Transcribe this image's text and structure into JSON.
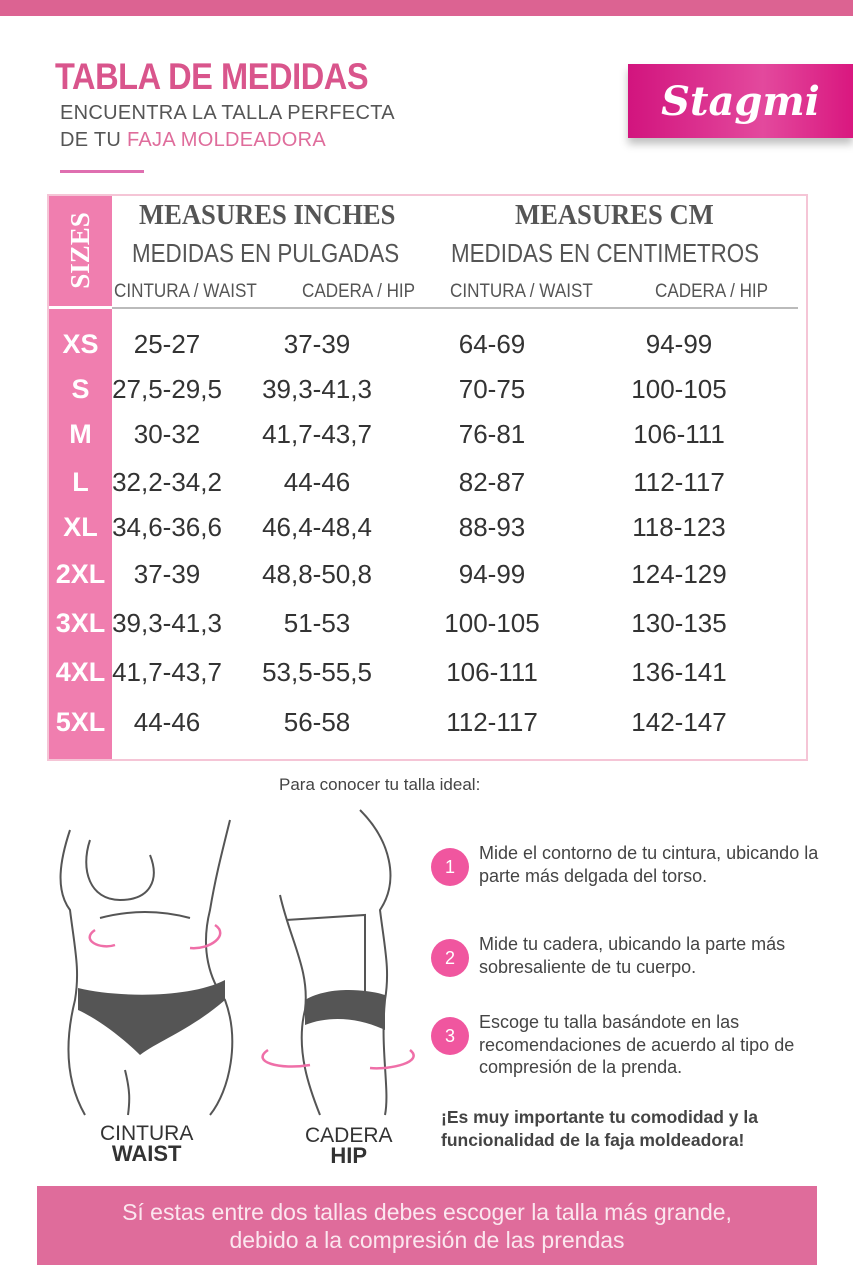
{
  "header": {
    "title": "TABLA DE MEDIDAS",
    "subtitle_line1": "ENCUENTRA LA TALLA PERFECTA",
    "subtitle_line2_prefix": "DE TU ",
    "subtitle_line2_highlight": "FAJA MOLDEADORA",
    "logo": "Stagmi"
  },
  "table": {
    "sizes_label": "SIZES",
    "inches_title": "MEASURES INCHES",
    "inches_subtitle": "MEDIDAS EN PULGADAS",
    "cm_title": "MEASURES CM",
    "cm_subtitle": "MEDIDAS EN CENTIMETROS",
    "columns": [
      "CINTURA / WAIST",
      "CADERA / HIP",
      "CINTURA / WAIST",
      "CADERA / HIP"
    ],
    "rows": [
      {
        "size": "XS",
        "waist_in": "25-27",
        "hip_in": "37-39",
        "waist_cm": "64-69",
        "hip_cm": "94-99"
      },
      {
        "size": "S",
        "waist_in": "27,5-29,5",
        "hip_in": "39,3-41,3",
        "waist_cm": "70-75",
        "hip_cm": "100-105"
      },
      {
        "size": "M",
        "waist_in": "30-32",
        "hip_in": "41,7-43,7",
        "waist_cm": "76-81",
        "hip_cm": "106-111"
      },
      {
        "size": "L",
        "waist_in": "32,2-34,2",
        "hip_in": "44-46",
        "waist_cm": "82-87",
        "hip_cm": "112-117"
      },
      {
        "size": "XL",
        "waist_in": "34,6-36,6",
        "hip_in": "46,4-48,4",
        "waist_cm": "88-93",
        "hip_cm": "118-123"
      },
      {
        "size": "2XL",
        "waist_in": "37-39",
        "hip_in": "48,8-50,8",
        "waist_cm": "94-99",
        "hip_cm": "124-129"
      },
      {
        "size": "3XL",
        "waist_in": "39,3-41,3",
        "hip_in": "51-53",
        "waist_cm": "100-105",
        "hip_cm": "130-135"
      },
      {
        "size": "4XL",
        "waist_in": "41,7-43,7",
        "hip_in": "53,5-55,5",
        "waist_cm": "106-111",
        "hip_cm": "136-141"
      },
      {
        "size": "5XL",
        "waist_in": "44-46",
        "hip_in": "56-58",
        "waist_cm": "112-117",
        "hip_cm": "142-147"
      }
    ]
  },
  "guide": {
    "intro": "Para conocer tu talla ideal:",
    "steps": [
      {
        "num": "1",
        "text": "Mide el contorno de tu cintura, ubicando la parte más delgada del torso."
      },
      {
        "num": "2",
        "text": "Mide tu cadera, ubicando la parte más sobresaliente de tu cuerpo."
      },
      {
        "num": "3",
        "text": "Escoge tu talla basándote en las recomendaciones de acuerdo al tipo de compresión de la prenda."
      }
    ],
    "important": "¡Es muy importante tu comodidad y la funcionalidad de la faja moldeadora!",
    "waist_label_es": "CINTURA",
    "waist_label_en": "WAIST",
    "hip_label_es": "CADERA",
    "hip_label_en": "HIP"
  },
  "footer": {
    "line1": "Sí estas entre dos tallas debes escoger la talla más grande,",
    "line2": "debido a la compresión de las prendas"
  },
  "colors": {
    "accent": "#dc6392",
    "size_column": "#f07eaf",
    "step_badge": "#f0569f"
  }
}
